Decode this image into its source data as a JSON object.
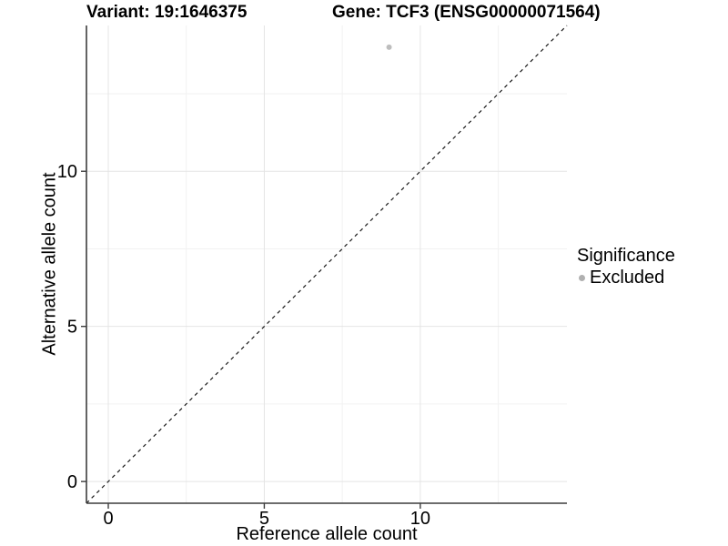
{
  "figure": {
    "title_variant": "Variant: 19:1646375",
    "title_gene": "Gene: TCF3 (ENSG00000071564)"
  },
  "chart_data": {
    "type": "scatter",
    "title": "Variant: 19:1646375    Gene: TCF3 (ENSG00000071564)",
    "xlabel": "Reference allele count",
    "ylabel": "Alternative allele count",
    "xlim": [
      -0.7,
      14.7
    ],
    "ylim": [
      -0.7,
      14.7
    ],
    "x_major_ticks": [
      0,
      5,
      10
    ],
    "y_major_ticks": [
      0,
      5,
      10
    ],
    "x_minor_ticks": [
      2.5,
      7.5,
      12.5
    ],
    "y_minor_ticks": [
      2.5,
      7.5,
      12.5
    ],
    "grid": true,
    "points": [
      {
        "x": 9,
        "y": 14,
        "series": "Excluded"
      }
    ],
    "reference_line": {
      "type": "identity",
      "slope": 1,
      "intercept": 0,
      "style": "dashed"
    },
    "legend": {
      "title": "Significance",
      "position": "right",
      "entries": [
        {
          "label": "Excluded",
          "color": "#b0b0b0",
          "marker": "circle"
        }
      ]
    },
    "colors": {
      "point": "#bdbdbd",
      "axis": "#3d3d3d",
      "grid_major": "#e4e4e4",
      "grid_minor": "#f2f2f2",
      "reference_line": "#1a1a1a",
      "text": "#000000"
    }
  }
}
